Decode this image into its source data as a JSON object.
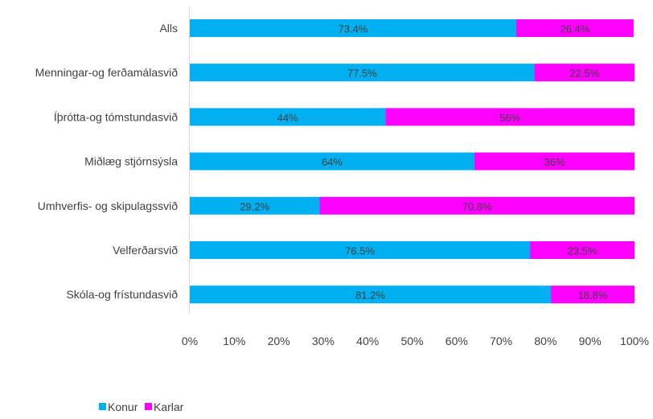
{
  "chart_data": {
    "type": "bar",
    "orientation": "horizontal",
    "stacked": true,
    "categories": [
      "Alls",
      "Menningar-og ferðamálasvið",
      "Íþrótta-og tómstundasvið",
      "Miðlæg stjórnsýsla",
      "Umhverfis- og skipulagssvið",
      "Velferðarsvið",
      "Skóla-og frístundasvið"
    ],
    "series": [
      {
        "name": "Konur",
        "color": "#00B0F0",
        "values": [
          73.4,
          77.5,
          44,
          64,
          29.2,
          76.5,
          81.2
        ],
        "labels": [
          "73.4%",
          "77.5%",
          "44%",
          "64%",
          "29.2%",
          "76.5%",
          "81.2%"
        ]
      },
      {
        "name": "Karlar",
        "color": "#FF00FF",
        "values": [
          26.4,
          22.5,
          56,
          36,
          70.8,
          23.5,
          18.8
        ],
        "labels": [
          "26.4%",
          "22.5%",
          "56%",
          "36%",
          "70.8%",
          "23.5%",
          "18.8%"
        ]
      }
    ],
    "xlim": [
      0,
      100
    ],
    "xticks": [
      0,
      10,
      20,
      30,
      40,
      50,
      60,
      70,
      80,
      90,
      100
    ],
    "xtick_labels": [
      "0%",
      "10%",
      "20%",
      "30%",
      "40%",
      "50%",
      "60%",
      "70%",
      "80%",
      "90%",
      "100%"
    ],
    "grid": false,
    "legend_position": "bottom-left"
  }
}
